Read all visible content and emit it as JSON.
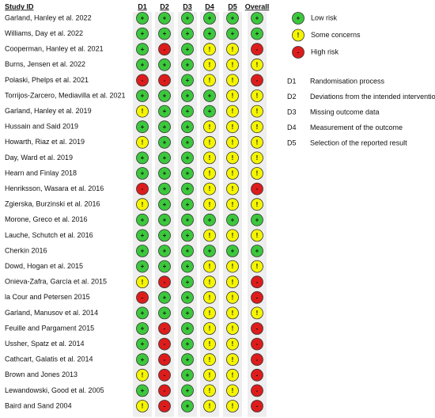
{
  "header": {
    "study": "Study ID",
    "domains": [
      "D1",
      "D2",
      "D3",
      "D4",
      "D5"
    ],
    "overall": "Overall"
  },
  "rows": [
    {
      "study": "Garland, Hanley et al. 2022",
      "judgments": [
        "+",
        "+",
        "+",
        "+",
        "+",
        "+"
      ]
    },
    {
      "study": "Williams, Day et al. 2022",
      "judgments": [
        "+",
        "+",
        "+",
        "+",
        "+",
        "+"
      ]
    },
    {
      "study": "Cooperman, Hanley et al. 2021",
      "judgments": [
        "+",
        "-",
        "+",
        "!",
        "!",
        "-"
      ]
    },
    {
      "study": "Burns, Jensen et al. 2022",
      "judgments": [
        "+",
        "+",
        "+",
        "!",
        "!",
        "!"
      ]
    },
    {
      "study": "Polaski, Phelps et al. 2021",
      "judgments": [
        "-",
        "-",
        "+",
        "!",
        "!",
        "-"
      ]
    },
    {
      "study": "Torrijos-Zarcero, Mediavilla et al. 2021",
      "judgments": [
        "+",
        "+",
        "+",
        "+",
        "!",
        "!"
      ]
    },
    {
      "study": "Garland, Hanley et al. 2019",
      "judgments": [
        "!",
        "+",
        "+",
        "+",
        "!",
        "!"
      ]
    },
    {
      "study": "Hussain and Said 2019",
      "judgments": [
        "+",
        "+",
        "+",
        "!",
        "!",
        "!"
      ]
    },
    {
      "study": "Howarth, Riaz et al. 2019",
      "judgments": [
        "!",
        "+",
        "+",
        "!",
        "!",
        "!"
      ]
    },
    {
      "study": "Day, Ward et al. 2019",
      "judgments": [
        "+",
        "+",
        "+",
        "!",
        "!",
        "!"
      ]
    },
    {
      "study": "Hearn and Finlay 2018",
      "judgments": [
        "+",
        "+",
        "+",
        "!",
        "!",
        "!"
      ]
    },
    {
      "study": "Henriksson, Wasara et al. 2016",
      "judgments": [
        "-",
        "+",
        "+",
        "!",
        "!",
        "-"
      ]
    },
    {
      "study": "Zgierska, Burzinski et al. 2016",
      "judgments": [
        "!",
        "+",
        "+",
        "!",
        "!",
        "!"
      ]
    },
    {
      "study": "Morone, Greco et al. 2016",
      "judgments": [
        "+",
        "+",
        "+",
        "+",
        "+",
        "+"
      ]
    },
    {
      "study": "Lauche, Schutch et al. 2016",
      "judgments": [
        "+",
        "+",
        "+",
        "!",
        "!",
        "!"
      ]
    },
    {
      "study": "Cherkin 2016",
      "judgments": [
        "+",
        "+",
        "+",
        "+",
        "+",
        "+"
      ]
    },
    {
      "study": "Dowd, Hogan et al. 2015",
      "judgments": [
        "+",
        "+",
        "+",
        "!",
        "!",
        "!"
      ]
    },
    {
      "study": "Onieva-Zafra, García et al. 2015",
      "judgments": [
        "!",
        "-",
        "+",
        "!",
        "!",
        "-"
      ]
    },
    {
      "study": "la Cour and Petersen 2015",
      "judgments": [
        "-",
        "+",
        "+",
        "!",
        "!",
        "-"
      ]
    },
    {
      "study": "Garland, Manusov et al. 2014",
      "judgments": [
        "+",
        "+",
        "+",
        "!",
        "!",
        "!"
      ]
    },
    {
      "study": "Feuille and Pargament 2015",
      "judgments": [
        "+",
        "-",
        "+",
        "!",
        "!",
        "-"
      ]
    },
    {
      "study": "Ussher, Spatz et al. 2014",
      "judgments": [
        "+",
        "-",
        "+",
        "!",
        "!",
        "-"
      ]
    },
    {
      "study": "Cathcart, Galatis et al. 2014",
      "judgments": [
        "+",
        "-",
        "+",
        "!",
        "!",
        "-"
      ]
    },
    {
      "study": "Brown and Jones 2013",
      "judgments": [
        "!",
        "-",
        "+",
        "!",
        "!",
        "-"
      ]
    },
    {
      "study": "Lewandowski, Good et al. 2005",
      "judgments": [
        "+",
        "-",
        "+",
        "!",
        "!",
        "-"
      ]
    },
    {
      "study": "Baird and Sand 2004",
      "judgments": [
        "!",
        "-",
        "+",
        "!",
        "!",
        "-"
      ]
    }
  ],
  "legend": [
    {
      "symbol": "+",
      "label": "Low risk",
      "color": "#3cc83c"
    },
    {
      "symbol": "!",
      "label": "Some concerns",
      "color": "#f5f500"
    },
    {
      "symbol": "-",
      "label": "High risk",
      "color": "#dd1c1c"
    }
  ],
  "domain_key": [
    {
      "code": "D1",
      "label": "Randomisation process"
    },
    {
      "code": "D2",
      "label": "Deviations from the intended interventions"
    },
    {
      "code": "D3",
      "label": "Missing outcome data"
    },
    {
      "code": "D4",
      "label": "Measurement of the outcome"
    },
    {
      "code": "D5",
      "label": "Selection of the reported result"
    }
  ]
}
